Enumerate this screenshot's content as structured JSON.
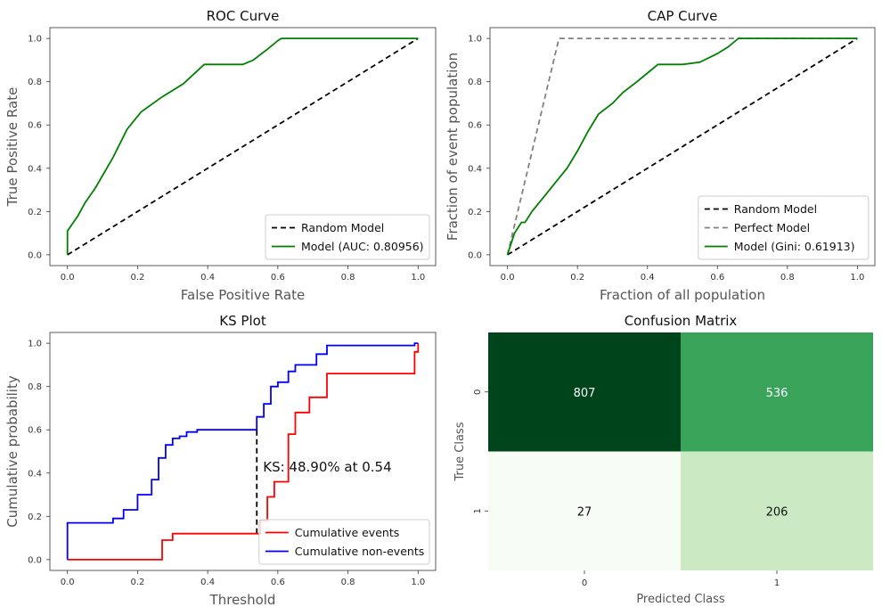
{
  "chart_data": [
    {
      "type": "line",
      "title": "ROC Curve",
      "xlabel": "False Positive Rate",
      "ylabel": "True Positive Rate",
      "xlim": [
        -0.05,
        1.05
      ],
      "ylim": [
        -0.05,
        1.05
      ],
      "xticks": [
        "0.0",
        "0.2",
        "0.4",
        "0.6",
        "0.8",
        "1.0"
      ],
      "yticks": [
        "0.0",
        "0.2",
        "0.4",
        "0.6",
        "0.8",
        "1.0"
      ],
      "legend_position": "lower-right",
      "series": [
        {
          "name": "Random Model",
          "color": "#000000",
          "dash": true,
          "x": [
            0,
            1
          ],
          "y": [
            0,
            1
          ]
        },
        {
          "name": "Model (AUC: 0.80956)",
          "color": "#008000",
          "dash": false,
          "x": [
            0,
            0,
            0.03,
            0.05,
            0.08,
            0.13,
            0.17,
            0.21,
            0.27,
            0.33,
            0.39,
            0.45,
            0.5,
            0.53,
            0.57,
            0.6,
            0.61,
            0.7,
            0.8,
            0.9,
            1.0
          ],
          "y": [
            0,
            0.11,
            0.18,
            0.24,
            0.31,
            0.45,
            0.58,
            0.66,
            0.73,
            0.79,
            0.88,
            0.88,
            0.88,
            0.9,
            0.95,
            0.99,
            1.0,
            1.0,
            1.0,
            1.0,
            1.0
          ]
        }
      ]
    },
    {
      "type": "line",
      "title": "CAP Curve",
      "xlabel": "Fraction of all population",
      "ylabel": "Fraction of event population",
      "xlim": [
        -0.05,
        1.05
      ],
      "ylim": [
        -0.05,
        1.05
      ],
      "xticks": [
        "0.0",
        "0.2",
        "0.4",
        "0.6",
        "0.8",
        "1.0"
      ],
      "yticks": [
        "0.0",
        "0.2",
        "0.4",
        "0.6",
        "0.8",
        "1.0"
      ],
      "legend_position": "lower-right",
      "series": [
        {
          "name": "Random Model",
          "color": "#000000",
          "dash": true,
          "x": [
            0,
            1
          ],
          "y": [
            0,
            1
          ]
        },
        {
          "name": "Perfect Model",
          "color": "#808080",
          "dash": true,
          "x": [
            0,
            0.147,
            1
          ],
          "y": [
            0,
            1,
            1
          ]
        },
        {
          "name": "Model (Gini: 0.61913)",
          "color": "#008000",
          "dash": false,
          "x": [
            0,
            0.02,
            0.04,
            0.05,
            0.07,
            0.1,
            0.13,
            0.17,
            0.2,
            0.23,
            0.26,
            0.3,
            0.33,
            0.37,
            0.4,
            0.43,
            0.46,
            0.5,
            0.55,
            0.6,
            0.63,
            0.66,
            0.7,
            0.8,
            0.9,
            1.0
          ],
          "y": [
            0,
            0.1,
            0.15,
            0.15,
            0.2,
            0.26,
            0.32,
            0.4,
            0.48,
            0.57,
            0.65,
            0.7,
            0.75,
            0.8,
            0.84,
            0.88,
            0.88,
            0.88,
            0.89,
            0.93,
            0.96,
            1.0,
            1.0,
            1.0,
            1.0,
            1.0
          ]
        }
      ]
    },
    {
      "type": "line",
      "title": "KS Plot",
      "xlabel": "Threshold",
      "ylabel": "Cumulative probability",
      "xlim": [
        -0.05,
        1.05
      ],
      "ylim": [
        -0.05,
        1.05
      ],
      "xticks": [
        "0.0",
        "0.2",
        "0.4",
        "0.6",
        "0.8",
        "1.0"
      ],
      "yticks": [
        "0.0",
        "0.2",
        "0.4",
        "0.6",
        "0.8",
        "1.0"
      ],
      "legend_position": "lower-right",
      "annotation": {
        "text": "KS: 48.90% at 0.54",
        "x": 0.54,
        "y": 0.4
      },
      "ks_line": {
        "x": 0.54,
        "y_low": 0.12,
        "y_high": 0.6
      },
      "series": [
        {
          "name": "Cumulative events",
          "color": "#ff0000",
          "step": true,
          "x": [
            0,
            0.27,
            0.3,
            0.54,
            0.55,
            0.57,
            0.59,
            0.63,
            0.65,
            0.69,
            0.74,
            0.97,
            0.99,
            1.0
          ],
          "y": [
            0,
            0.09,
            0.12,
            0.12,
            0.18,
            0.29,
            0.36,
            0.58,
            0.68,
            0.75,
            0.86,
            0.86,
            0.96,
            1.0
          ]
        },
        {
          "name": "Cumulative non-events",
          "color": "#0000ff",
          "step": true,
          "x": [
            0,
            0.13,
            0.16,
            0.2,
            0.24,
            0.26,
            0.28,
            0.3,
            0.32,
            0.34,
            0.37,
            0.4,
            0.54,
            0.56,
            0.58,
            0.6,
            0.63,
            0.65,
            0.71,
            0.74,
            0.96,
            0.99,
            1.0
          ],
          "y": [
            0.17,
            0.19,
            0.23,
            0.3,
            0.37,
            0.47,
            0.53,
            0.56,
            0.57,
            0.59,
            0.6,
            0.6,
            0.66,
            0.72,
            0.8,
            0.82,
            0.87,
            0.9,
            0.95,
            0.99,
            0.99,
            1.0,
            1.0
          ]
        }
      ]
    },
    {
      "type": "heatmap",
      "title": "Confusion Matrix",
      "xlabel": "Predicted Class",
      "ylabel": "True Class",
      "x_categories": [
        "0",
        "1"
      ],
      "y_categories": [
        "0",
        "1"
      ],
      "values": [
        [
          807,
          536
        ],
        [
          27,
          206
        ]
      ],
      "colors": [
        [
          "#00441b",
          "#3aa35a"
        ],
        [
          "#f7fcf5",
          "#cbeac4"
        ]
      ]
    }
  ]
}
